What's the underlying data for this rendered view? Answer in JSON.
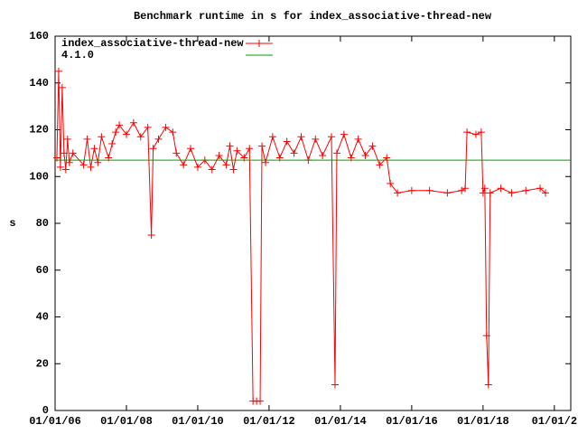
{
  "chart_data": {
    "type": "line",
    "title": "Benchmark runtime in s for index_associative-thread-new",
    "ylabel": "s",
    "xlim": [
      2006,
      2020.46
    ],
    "ylim": [
      0,
      160
    ],
    "xticks": [
      {
        "value": 2006,
        "label": "01/01/06"
      },
      {
        "value": 2008,
        "label": "01/01/08"
      },
      {
        "value": 2010,
        "label": "01/01/10"
      },
      {
        "value": 2012,
        "label": "01/01/12"
      },
      {
        "value": 2014,
        "label": "01/01/14"
      },
      {
        "value": 2016,
        "label": "01/01/16"
      },
      {
        "value": 2018,
        "label": "01/01/18"
      },
      {
        "value": 2020,
        "label": "01/01/2"
      }
    ],
    "yticks": [
      0,
      20,
      40,
      60,
      80,
      100,
      120,
      140,
      160
    ],
    "legend": "top-left",
    "series": [
      {
        "name": "index_associative-thread-new",
        "color": "#ff0000",
        "markers": true,
        "x": [
          2006.05,
          2006.1,
          2006.15,
          2006.2,
          2006.25,
          2006.3,
          2006.35,
          2006.4,
          2006.5,
          2006.8,
          2006.9,
          2007.0,
          2007.1,
          2007.2,
          2007.3,
          2007.5,
          2007.6,
          2007.7,
          2007.8,
          2008.0,
          2008.2,
          2008.4,
          2008.6,
          2008.7,
          2008.75,
          2008.9,
          2009.1,
          2009.3,
          2009.4,
          2009.6,
          2009.8,
          2010.0,
          2010.2,
          2010.4,
          2010.6,
          2010.8,
          2010.9,
          2011.0,
          2011.1,
          2011.3,
          2011.45,
          2011.55,
          2011.65,
          2011.75,
          2011.8,
          2011.9,
          2012.1,
          2012.3,
          2012.5,
          2012.7,
          2012.9,
          2013.1,
          2013.3,
          2013.5,
          2013.75,
          2013.85,
          2013.9,
          2014.1,
          2014.3,
          2014.5,
          2014.7,
          2014.9,
          2015.1,
          2015.3,
          2015.4,
          2015.6,
          2016.0,
          2016.5,
          2017.0,
          2017.4,
          2017.5,
          2017.55,
          2017.8,
          2017.95,
          2018.0,
          2018.05,
          2018.1,
          2018.15,
          2018.2,
          2018.5,
          2018.8,
          2019.2,
          2019.6,
          2019.75
        ],
        "values": [
          108,
          145,
          104,
          138,
          110,
          103,
          116,
          106,
          110,
          105,
          116,
          104,
          112,
          106,
          117,
          108,
          114,
          119,
          122,
          118,
          123,
          117,
          121,
          75,
          112,
          116,
          121,
          119,
          110,
          105,
          112,
          104,
          107,
          103,
          109,
          105,
          113,
          103,
          111,
          108,
          112,
          4,
          4,
          4,
          113,
          106,
          117,
          108,
          115,
          110,
          117,
          107,
          116,
          109,
          117,
          11,
          110,
          118,
          108,
          116,
          109,
          113,
          105,
          108,
          97,
          93,
          94,
          94,
          93,
          94,
          95,
          119,
          118,
          119,
          93,
          95,
          32,
          11,
          93,
          95,
          93,
          94,
          95,
          93
        ]
      },
      {
        "name": "4.1.0",
        "color": "#00a000",
        "markers": false,
        "x": [
          2006,
          2020.46
        ],
        "values": [
          107,
          107
        ]
      }
    ]
  }
}
